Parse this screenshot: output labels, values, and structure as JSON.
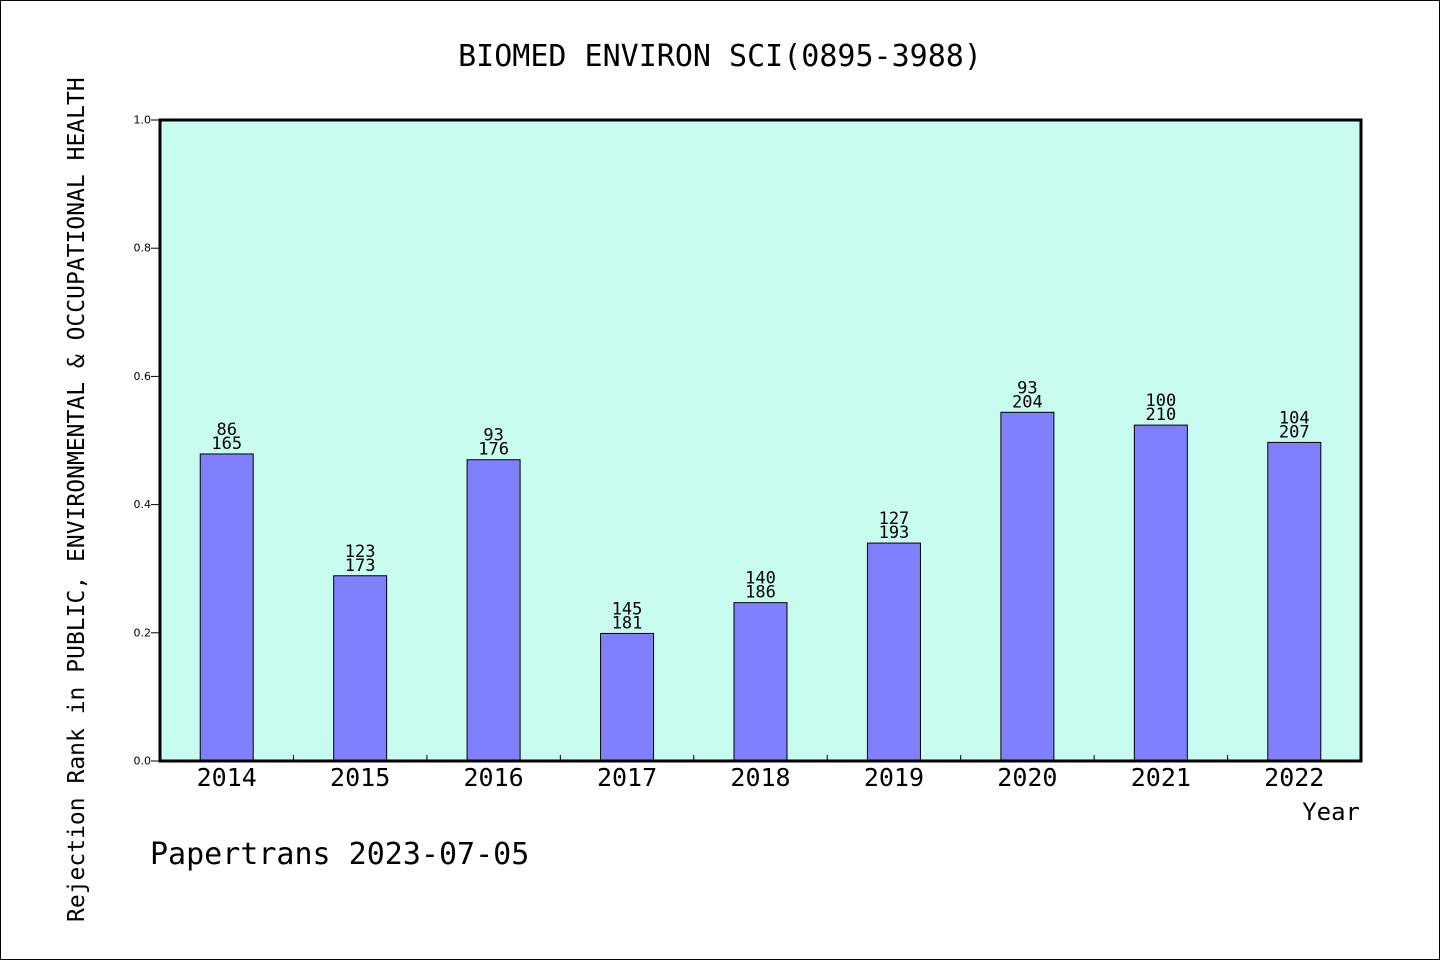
{
  "title": "BIOMED ENVIRON SCI(0895-3988)",
  "footer": "Papertrans 2023-07-05",
  "colors": {
    "plot_background": "#c8fcee",
    "bar_fill": "#8080ff",
    "bar_stroke": "#000000",
    "text": "#000000"
  },
  "chart_data": {
    "type": "bar",
    "title": "BIOMED ENVIRON SCI(0895-3988)",
    "xlabel": "Year",
    "ylabel": "Rejection Rank in PUBLIC, ENVIRONMENTAL & OCCUPATIONAL HEALTH",
    "ylim": [
      0,
      1.0
    ],
    "yticks": [
      "0.0",
      "0.2",
      "0.4",
      "0.6",
      "0.8",
      "1.0"
    ],
    "grid": false,
    "categories": [
      "2014",
      "2015",
      "2016",
      "2017",
      "2018",
      "2019",
      "2020",
      "2021",
      "2022"
    ],
    "values": [
      0.479,
      0.289,
      0.47,
      0.199,
      0.247,
      0.34,
      0.544,
      0.524,
      0.497
    ],
    "label_top": [
      "86",
      "123",
      "93",
      "145",
      "140",
      "127",
      "93",
      "100",
      "104"
    ],
    "label_bottom": [
      "165",
      "173",
      "176",
      "181",
      "186",
      "193",
      "204",
      "210",
      "207"
    ]
  }
}
